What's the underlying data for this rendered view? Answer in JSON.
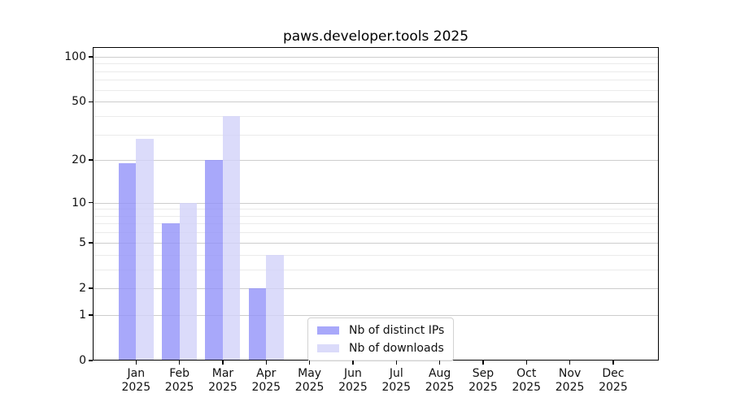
{
  "title": "paws.developer.tools 2025",
  "chart_data": {
    "type": "bar",
    "title": "paws.developer.tools 2025",
    "categories": [
      "Jan 2025",
      "Feb 2025",
      "Mar 2025",
      "Apr 2025",
      "May 2025",
      "Jun 2025",
      "Jul 2025",
      "Aug 2025",
      "Sep 2025",
      "Oct 2025",
      "Nov 2025",
      "Dec 2025"
    ],
    "series": [
      {
        "name": "Nb of distinct IPs",
        "color": "rgba(146,146,249,0.8)",
        "values": [
          19,
          7,
          20,
          2,
          0,
          0,
          0,
          0,
          0,
          0,
          0,
          0
        ]
      },
      {
        "name": "Nb of downloads",
        "color": "rgba(210,210,249,0.8)",
        "values": [
          28,
          10,
          40,
          4,
          0,
          0,
          0,
          0,
          0,
          0,
          0,
          0
        ]
      }
    ],
    "xlabel": "",
    "ylabel": "",
    "y_scale": "log10(value+1)",
    "y_major_ticks": [
      0,
      1,
      2,
      5,
      10,
      20,
      50,
      100
    ],
    "y_minor_gridlines": [
      3,
      4,
      6,
      7,
      8,
      9,
      30,
      40,
      60,
      70,
      80,
      90
    ],
    "ylim": [
      0,
      116
    ],
    "grid": "on",
    "legend_position": "inside-lower-center-left"
  },
  "colors": {
    "background": "#ffffff",
    "spine": "#000000",
    "grid_major": "#cdcdcd",
    "grid_minor": "#ebebeb",
    "text": "#111111",
    "legend_border": "#d2d2d2"
  }
}
